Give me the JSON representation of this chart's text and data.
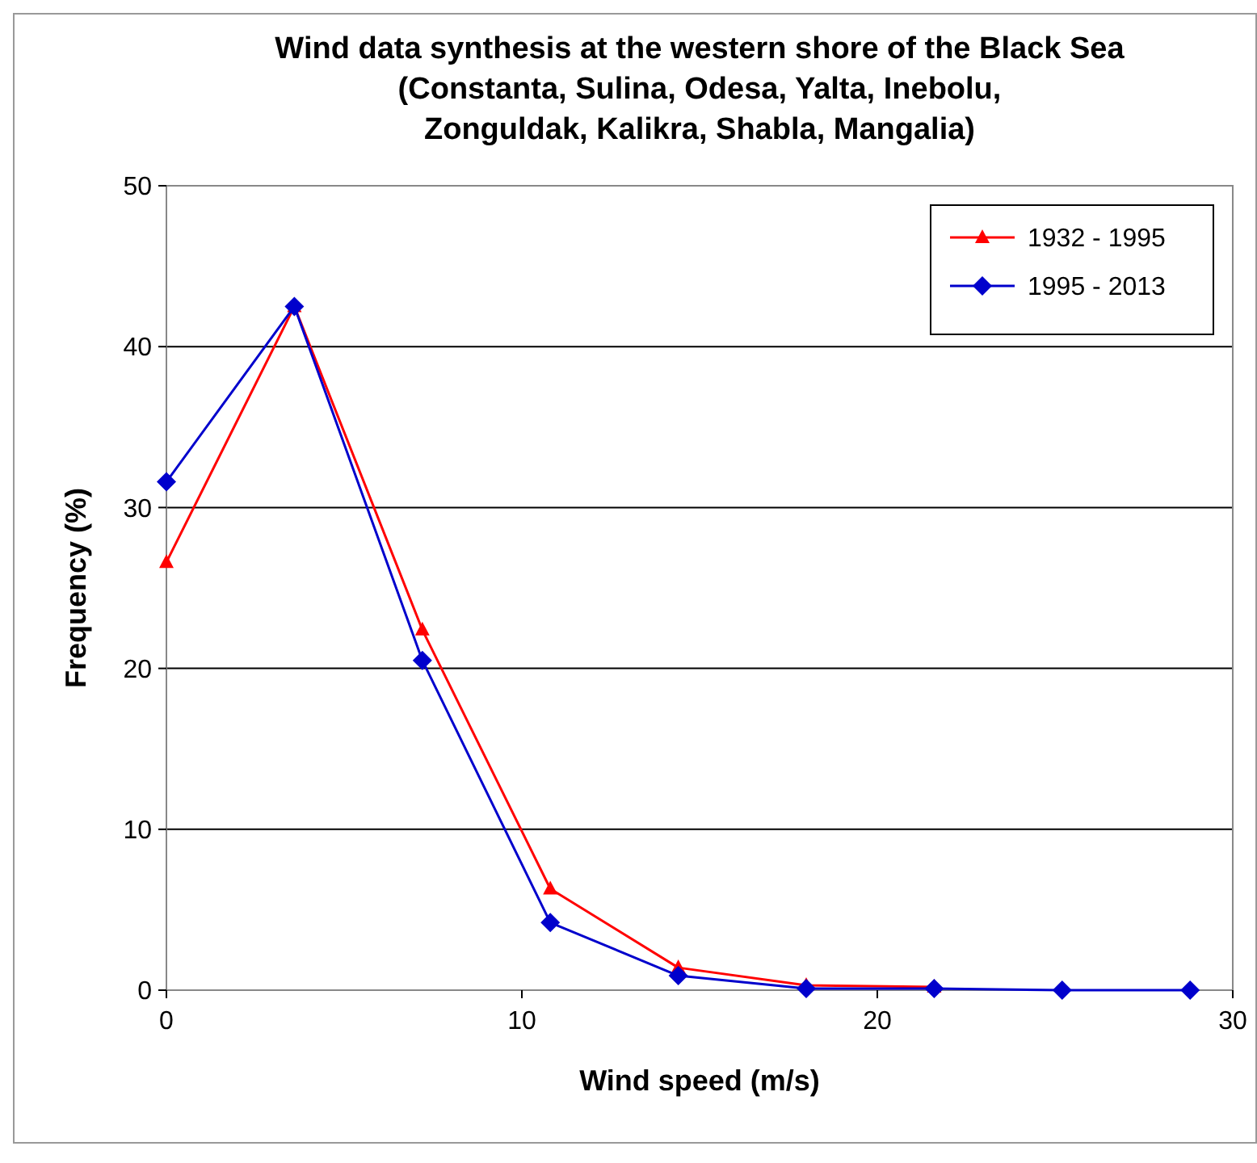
{
  "chart_data": {
    "type": "line",
    "title": "Wind data synthesis at the western shore of the Black Sea\n(Constanta, Sulina, Odesa, Yalta, Inebolu,\nZonguldak, Kalikra, Shabla, Mangalia)",
    "xlabel": "Wind speed (m/s)",
    "ylabel": "Frequency (%)",
    "series": [
      {
        "name": "1932 - 1995",
        "color": "#ff0000",
        "marker": "triangle",
        "x": [
          0,
          3.6,
          7.2,
          10.8,
          14.4,
          18,
          21.6
        ],
        "values": [
          26.6,
          42.5,
          22.4,
          6.3,
          1.4,
          0.3,
          0.2
        ]
      },
      {
        "name": "1995 - 2013",
        "color": "#0000cc",
        "marker": "diamond",
        "x": [
          0,
          3.6,
          7.2,
          10.8,
          14.4,
          18,
          21.6,
          25.2,
          28.8
        ],
        "values": [
          31.6,
          42.5,
          20.5,
          4.2,
          0.9,
          0.1,
          0.1,
          0,
          0
        ]
      }
    ],
    "xlim": [
      0,
      30
    ],
    "xticks": [
      0,
      10,
      20,
      30
    ],
    "ylim": [
      0,
      50
    ],
    "yticks": [
      0,
      10,
      20,
      30,
      40,
      50
    ],
    "grid": "y",
    "legend": "top right",
    "line_style": "solid"
  }
}
